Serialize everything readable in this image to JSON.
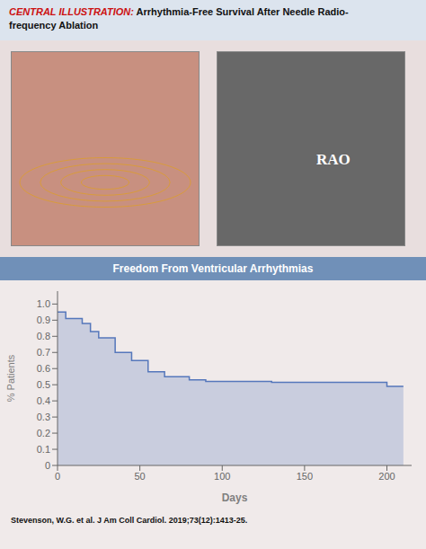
{
  "chart_data": {
    "type": "area",
    "title": "Freedom From Ventricular Arrhythmias",
    "annotations": [
      "CENTRAL ILLUSTRATION:",
      "Arrhythmia-Free Survival After Needle Radio-\nfrequency Ablation",
      "RAO",
      "Stevenson, W.G. et al. J Am Coll Cardiol. 2019;73(12):1413-25."
    ],
    "xlabel": "Days",
    "ylabel": "% Patients",
    "x": [
      0,
      5,
      5,
      15,
      15,
      20,
      20,
      25,
      25,
      35,
      35,
      45,
      45,
      55,
      55,
      65,
      65,
      80,
      80,
      90,
      90,
      105,
      105,
      130,
      130,
      200,
      200,
      210
    ],
    "values": [
      0.95,
      0.95,
      0.91,
      0.91,
      0.88,
      0.88,
      0.83,
      0.83,
      0.79,
      0.79,
      0.7,
      0.7,
      0.65,
      0.65,
      0.58,
      0.58,
      0.55,
      0.55,
      0.53,
      0.53,
      0.52,
      0.52,
      0.52,
      0.52,
      0.515,
      0.515,
      0.49,
      0.49
    ],
    "color": "#5577bb",
    "xlim": [
      0,
      215
    ],
    "ylim": [
      0,
      1.08
    ],
    "xticks": [
      0,
      50,
      100,
      150,
      200
    ],
    "yticks": [
      0,
      0.1,
      0.2,
      0.3,
      0.4,
      0.5,
      0.6,
      0.7,
      0.8,
      0.9,
      {
        "value": 1.0,
        "label": "1.0"
      }
    ]
  }
}
